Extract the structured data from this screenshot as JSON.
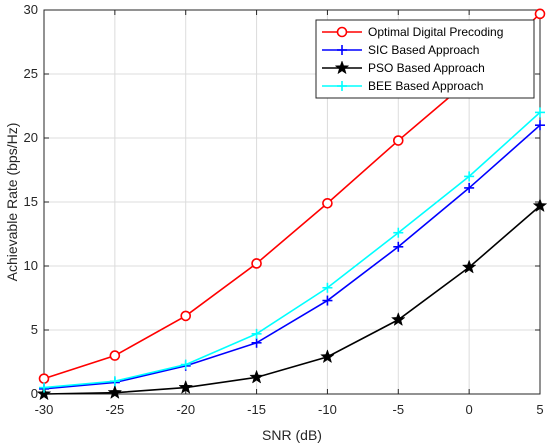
{
  "chart_data": {
    "type": "line",
    "xlabel": "SNR (dB)",
    "ylabel": "Achievable Rate (bps/Hz)",
    "xlim": [
      -30,
      5
    ],
    "ylim": [
      0,
      30
    ],
    "xticks": [
      -30,
      -25,
      -20,
      -15,
      -10,
      -5,
      0,
      5
    ],
    "yticks": [
      0,
      5,
      10,
      15,
      20,
      25,
      30
    ],
    "grid": true,
    "legend_position": "top-right",
    "x": [
      -30,
      -25,
      -20,
      -15,
      -10,
      -5,
      0,
      5
    ],
    "series": [
      {
        "name": "Optimal Digital Precoding",
        "color": "#ff0000",
        "marker": "circle",
        "values": [
          1.2,
          3.0,
          6.1,
          10.2,
          14.9,
          19.8,
          24.5,
          29.7
        ]
      },
      {
        "name": "SIC Based Approach",
        "color": "#0000ff",
        "marker": "plus",
        "values": [
          0.4,
          0.9,
          2.2,
          4.0,
          7.3,
          11.5,
          16.1,
          21.0
        ]
      },
      {
        "name": "PSO Based Approach",
        "color": "#000000",
        "marker": "star",
        "values": [
          0.0,
          0.1,
          0.5,
          1.3,
          2.9,
          5.8,
          9.9,
          14.7
        ]
      },
      {
        "name": "BEE Based Approach",
        "color": "#00ffff",
        "marker": "plus",
        "values": [
          0.5,
          1.0,
          2.3,
          4.7,
          8.3,
          12.6,
          17.0,
          22.0
        ]
      }
    ]
  }
}
